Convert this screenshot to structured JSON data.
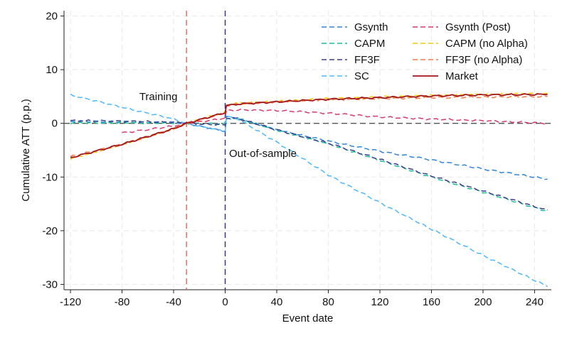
{
  "chart_data": {
    "type": "line",
    "title": "",
    "xlabel": "Event date",
    "ylabel": "Cumulative ATT (p.p.)",
    "xlim": [
      -125,
      253
    ],
    "ylim": [
      -31,
      21
    ],
    "x_ticks": [
      -120,
      -80,
      -40,
      0,
      40,
      80,
      120,
      160,
      200,
      240
    ],
    "x_tick_labels": [
      "-120",
      "-80",
      "-40",
      "0",
      "40",
      "80",
      "120",
      "160",
      "200",
      "240"
    ],
    "y_ticks": [
      20,
      10,
      0,
      -10,
      -20,
      -30
    ],
    "y_tick_labels": [
      "20",
      "10",
      "0",
      "-10",
      "-20",
      "-30"
    ],
    "grid": true,
    "legend_position": "top-right",
    "reference_lines": [
      {
        "axis": "y",
        "value": 0,
        "color": "#555555",
        "style": "dashed"
      },
      {
        "axis": "x",
        "value": -30,
        "color": "#e8655a",
        "style": "dashed"
      },
      {
        "axis": "x",
        "value": 0,
        "color": "#2c2c9c",
        "style": "dashed"
      }
    ],
    "annotations": [
      {
        "text": "Training",
        "x": -37,
        "y": 5
      },
      {
        "text": "Out-of-sample",
        "x": 3,
        "y": -5.6
      }
    ],
    "series": [
      {
        "name": "Gsynth",
        "color": "#2e86de",
        "style": "dashed",
        "x": [
          -120,
          -80,
          -40,
          -30,
          0,
          1,
          10,
          40,
          80,
          120,
          160,
          200,
          250
        ],
        "y": [
          0.4,
          0.3,
          0.15,
          0,
          -1.5,
          1.2,
          0.9,
          -1.2,
          -3.3,
          -5.2,
          -6.8,
          -8.5,
          -10.4
        ]
      },
      {
        "name": "CAPM",
        "color": "#1abc9c",
        "style": "dashed",
        "x": [
          -120,
          -80,
          -40,
          -30,
          0,
          1,
          10,
          40,
          80,
          120,
          160,
          200,
          250
        ],
        "y": [
          0.1,
          0.1,
          0.05,
          0,
          -0.1,
          0.9,
          0.9,
          -1.3,
          -3.8,
          -6.9,
          -10.0,
          -12.8,
          -16.4
        ]
      },
      {
        "name": "FF3F",
        "color": "#3b3f8c",
        "style": "dashed",
        "x": [
          -120,
          -80,
          -40,
          -30,
          0,
          1,
          10,
          40,
          80,
          120,
          160,
          200,
          250
        ],
        "y": [
          0.5,
          0.4,
          0.2,
          0,
          -0.3,
          1.0,
          0.9,
          -1.2,
          -3.7,
          -6.7,
          -9.8,
          -12.6,
          -16.2
        ]
      },
      {
        "name": "SC",
        "color": "#4db8ff",
        "style": "dashed",
        "x": [
          -120,
          -80,
          -40,
          -30,
          0,
          1,
          10,
          40,
          80,
          120,
          160,
          200,
          250
        ],
        "y": [
          5.3,
          3.0,
          0.8,
          0,
          -1.5,
          1.3,
          0.8,
          -3.5,
          -9.6,
          -14.8,
          -19.7,
          -24.6,
          -30.4
        ]
      },
      {
        "name": "Gsynth (Post)",
        "color": "#d63a6a",
        "style": "dashed",
        "x": [
          -80,
          -40,
          -30,
          -10,
          0,
          1,
          10,
          40,
          80,
          120,
          160,
          200,
          250
        ],
        "y": [
          -1.8,
          -0.5,
          0,
          0.6,
          1.0,
          2.4,
          2.5,
          2.4,
          1.9,
          1.2,
          0.8,
          0.5,
          0.0
        ]
      },
      {
        "name": "CAPM (no Alpha)",
        "color": "#f5c800",
        "style": "dashed",
        "x": [
          -120,
          -80,
          -40,
          -30,
          0,
          1,
          10,
          40,
          80,
          120,
          160,
          200,
          250
        ],
        "y": [
          -6.6,
          -4.0,
          -1.0,
          0,
          2.1,
          3.4,
          3.8,
          4.1,
          4.6,
          4.9,
          5.2,
          5.4,
          5.6
        ]
      },
      {
        "name": "FF3F (no Alpha)",
        "color": "#f07a4a",
        "style": "dashed",
        "x": [
          -120,
          -80,
          -40,
          -30,
          0,
          1,
          10,
          40,
          80,
          120,
          160,
          200,
          250
        ],
        "y": [
          -6.2,
          -3.9,
          -1.0,
          0,
          2.0,
          3.3,
          3.6,
          4.0,
          4.4,
          4.6,
          4.8,
          4.9,
          5.0
        ]
      },
      {
        "name": "Market",
        "color": "#a3141b",
        "style": "solid",
        "x": [
          -120,
          -80,
          -40,
          -30,
          0,
          1,
          10,
          40,
          80,
          120,
          160,
          200,
          250
        ],
        "y": [
          -6.4,
          -3.9,
          -1.0,
          0,
          2.0,
          3.3,
          3.6,
          4.0,
          4.5,
          4.8,
          5.1,
          5.3,
          5.4
        ]
      }
    ]
  }
}
